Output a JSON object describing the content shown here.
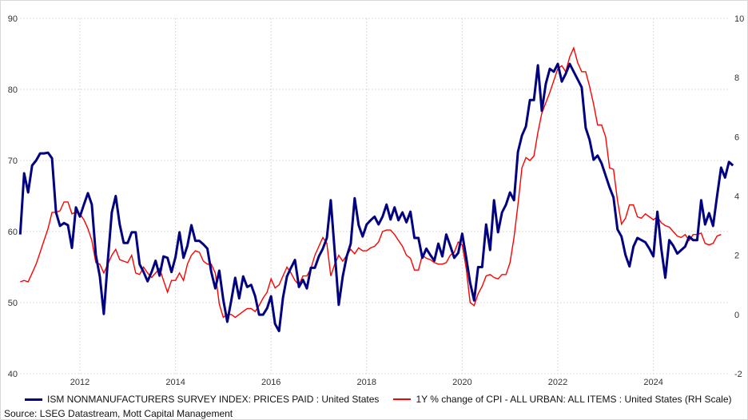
{
  "chart_data": {
    "type": "line",
    "title": "",
    "x_start": 2010.75,
    "x_step": 0.08333,
    "xlim": [
      2010.75,
      2025.65
    ],
    "x_ticks": [
      "2012",
      "2014",
      "2016",
      "2018",
      "2020",
      "2022",
      "2024"
    ],
    "y_left": {
      "range": [
        40,
        90
      ],
      "ticks": [
        "40",
        "50",
        "60",
        "70",
        "80",
        "90"
      ]
    },
    "y_right": {
      "range": [
        -2,
        10
      ],
      "ticks": [
        "-2",
        "0",
        "2",
        "4",
        "6",
        "8",
        "10"
      ]
    },
    "grid": true,
    "legend_position": "bottom",
    "series": [
      {
        "name": "ISM NONMANUFACTURERS SURVEY INDEX: PRICES PAID : United States",
        "axis": "left",
        "color": "#000080",
        "values": [
          59.6,
          68.2,
          65.5,
          69.3,
          70,
          71,
          71,
          71.1,
          70.3,
          62.7,
          60.8,
          61.2,
          60.9,
          57.7,
          63.4,
          62.1,
          63.8,
          65.4,
          63.8,
          56.7,
          53.7,
          48.4,
          55.9,
          62.7,
          65,
          61,
          58.4,
          58.4,
          59.9,
          59.9,
          55.4,
          54.3,
          53,
          54.3,
          55.9,
          53.8,
          56.5,
          56.3,
          54.3,
          56.4,
          59.9,
          56.3,
          58,
          60.9,
          58.7,
          58.7,
          58.2,
          57.6,
          54.3,
          52,
          54.5,
          50.4,
          47.3,
          50.3,
          53.5,
          50.6,
          53.7,
          52.2,
          52.5,
          50.9,
          48.3,
          48.3,
          49.2,
          50.9,
          47,
          46,
          50.7,
          53.7,
          54.9,
          56,
          52.2,
          53.2,
          52,
          54.9,
          54.9,
          56.5,
          57.6,
          59.1,
          64.4,
          57.1,
          49.7,
          53.7,
          56.5,
          58.3,
          64.7,
          60.9,
          59.3,
          61,
          61.6,
          62.1,
          61,
          62.1,
          63.8,
          61.7,
          63.4,
          61.6,
          62.7,
          61.3,
          62.8,
          59.1,
          59.1,
          56.3,
          57.6,
          56.7,
          55.9,
          58.3,
          56.5,
          59.6,
          58,
          56.3,
          57,
          59.7,
          56.3,
          52.8,
          50.3,
          55,
          55,
          61,
          57.4,
          64.4,
          59.9,
          62.7,
          63.8,
          65.5,
          64.4,
          71.2,
          73.5,
          74.8,
          78.5,
          78.5,
          83.4,
          77,
          80.8,
          82.9,
          82.5,
          83.6,
          81.1,
          82.2,
          83.6,
          82.5,
          81.4,
          80.3,
          74.6,
          72.9,
          70.1,
          70.7,
          69.6,
          67.9,
          66.2,
          64.8,
          60.3,
          59.3,
          56.7,
          55.1,
          57.9,
          59.1,
          58.8,
          58.5,
          57.6,
          56.5,
          62.8,
          57.6,
          53.5,
          58.8,
          58,
          56.9,
          57.4,
          57.9,
          59.3,
          58.8,
          58.8,
          64.4,
          61,
          62.6,
          60.8,
          65,
          69,
          67.6,
          69.8,
          69.3
        ]
      },
      {
        "name": "1Y % change of CPI - ALL URBAN: ALL ITEMS : United States (RH Scale)",
        "axis": "right",
        "color": "#ff0000",
        "values": [
          1.1,
          1.15,
          1.1,
          1.4,
          1.7,
          2.1,
          2.5,
          2.9,
          3.45,
          3.45,
          3.5,
          3.8,
          3.8,
          3.4,
          3.45,
          3.4,
          3.2,
          2.9,
          2.5,
          1.75,
          1.7,
          1.4,
          1.7,
          2,
          2.2,
          1.85,
          1.8,
          1.75,
          2,
          1.4,
          1.35,
          1.6,
          1.4,
          1.25,
          1.4,
          1.55,
          1.15,
          0.75,
          1.15,
          1.15,
          1.4,
          1.15,
          1.7,
          2,
          2.15,
          2.1,
          1.8,
          1.7,
          1.7,
          1.4,
          0.35,
          -0.1,
          0,
          0,
          -0.1,
          0,
          0.1,
          0.2,
          0.2,
          0.1,
          0.3,
          0.55,
          0.75,
          1.2,
          0.9,
          1,
          1.3,
          1.6,
          1.4,
          1.15,
          1,
          1.3,
          1.3,
          1.55,
          2,
          2.3,
          2.6,
          2.4,
          1.3,
          1.7,
          2,
          1.8,
          2,
          2.2,
          2.05,
          2.25,
          2.15,
          2.15,
          2.25,
          2.3,
          2.45,
          2.8,
          2.85,
          2.85,
          2.7,
          2.5,
          2.3,
          2,
          1.9,
          1.5,
          1.5,
          2,
          1.9,
          1.85,
          1.75,
          1.7,
          1.7,
          1.75,
          2,
          2.1,
          2.45,
          2.35,
          1.55,
          0.4,
          0.3,
          0.7,
          0.95,
          1.3,
          1.35,
          1.25,
          1.2,
          1.35,
          1.35,
          1.75,
          2.6,
          3.7,
          4.95,
          5.3,
          5.2,
          5.35,
          6.15,
          6.8,
          7.15,
          7.5,
          7.9,
          8.3,
          8.4,
          8.2,
          8.7,
          9,
          8.5,
          8.2,
          8.2,
          7.7,
          7.1,
          6.4,
          6.4,
          6,
          4.95,
          4.9,
          3.85,
          3.05,
          3.25,
          3.7,
          3.7,
          3.3,
          3.25,
          3.4,
          3.3,
          3.2,
          3.3,
          3.1,
          3,
          2.95,
          2.8,
          2.65,
          2.6,
          2.7,
          2.5,
          2.7,
          2.7,
          2.75,
          2.4,
          2.35,
          2.4,
          2.65,
          2.7
        ]
      }
    ],
    "source": "Source: LSEG Datastream, Mott Capital Management"
  }
}
